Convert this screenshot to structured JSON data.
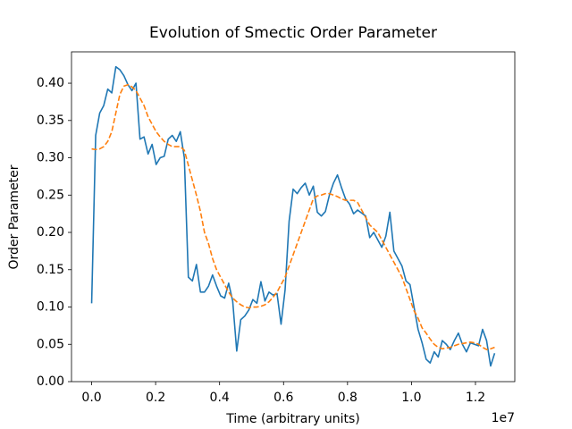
{
  "chart_data": {
    "type": "line",
    "title": "Evolution of Smectic Order Parameter",
    "xlabel": "Time (arbitrary units)",
    "ylabel": "Order Parameter",
    "x_offset_label": "1e7",
    "x": [
      0,
      126000,
      252000,
      378000,
      504000,
      630000,
      756000,
      882000,
      1008000,
      1134000,
      1260000,
      1386000,
      1512000,
      1638000,
      1764000,
      1890000,
      2016000,
      2142000,
      2268000,
      2394000,
      2520000,
      2646000,
      2772000,
      2898000,
      3024000,
      3150000,
      3276000,
      3402000,
      3528000,
      3654000,
      3780000,
      3906000,
      4032000,
      4158000,
      4284000,
      4410000,
      4536000,
      4662000,
      4788000,
      4914000,
      5040000,
      5166000,
      5292000,
      5418000,
      5544000,
      5670000,
      5796000,
      5922000,
      6048000,
      6174000,
      6300000,
      6426000,
      6552000,
      6678000,
      6804000,
      6930000,
      7056000,
      7182000,
      7308000,
      7434000,
      7560000,
      7686000,
      7812000,
      7938000,
      8064000,
      8190000,
      8316000,
      8442000,
      8568000,
      8694000,
      8820000,
      8946000,
      9072000,
      9198000,
      9324000,
      9450000,
      9576000,
      9702000,
      9828000,
      9954000,
      10080000,
      10206000,
      10332000,
      10458000,
      10584000,
      10710000,
      10836000,
      10962000,
      11088000,
      11214000,
      11340000,
      11466000,
      11592000,
      11718000,
      11844000,
      11970000,
      12096000,
      12222000,
      12348000,
      12474000,
      12600000
    ],
    "series": [
      {
        "color": "#1f77b4",
        "linestyle": "solid",
        "values": [
          0.105,
          0.33,
          0.36,
          0.37,
          0.392,
          0.387,
          0.422,
          0.418,
          0.41,
          0.398,
          0.39,
          0.4,
          0.325,
          0.328,
          0.305,
          0.318,
          0.291,
          0.3,
          0.302,
          0.325,
          0.33,
          0.322,
          0.335,
          0.3,
          0.14,
          0.135,
          0.157,
          0.12,
          0.12,
          0.128,
          0.143,
          0.128,
          0.115,
          0.112,
          0.132,
          0.108,
          0.041,
          0.083,
          0.088,
          0.096,
          0.11,
          0.105,
          0.134,
          0.108,
          0.12,
          0.116,
          0.118,
          0.077,
          0.123,
          0.215,
          0.258,
          0.252,
          0.26,
          0.266,
          0.25,
          0.262,
          0.227,
          0.222,
          0.228,
          0.25,
          0.266,
          0.277,
          0.26,
          0.245,
          0.238,
          0.225,
          0.23,
          0.226,
          0.222,
          0.193,
          0.2,
          0.19,
          0.18,
          0.195,
          0.227,
          0.175,
          0.165,
          0.155,
          0.135,
          0.13,
          0.1,
          0.07,
          0.052,
          0.03,
          0.025,
          0.04,
          0.033,
          0.055,
          0.05,
          0.043,
          0.055,
          0.065,
          0.05,
          0.04,
          0.052,
          0.05,
          0.048,
          0.07,
          0.055,
          0.021,
          0.038
        ]
      },
      {
        "color": "#ff7f0e",
        "linestyle": "dashed",
        "values": [
          0.312,
          0.311,
          0.312,
          0.315,
          0.322,
          0.335,
          0.36,
          0.385,
          0.396,
          0.398,
          0.395,
          0.39,
          0.38,
          0.37,
          0.355,
          0.345,
          0.335,
          0.328,
          0.322,
          0.318,
          0.315,
          0.315,
          0.315,
          0.31,
          0.29,
          0.27,
          0.25,
          0.228,
          0.2,
          0.185,
          0.165,
          0.15,
          0.14,
          0.13,
          0.12,
          0.112,
          0.107,
          0.103,
          0.1,
          0.099,
          0.1,
          0.1,
          0.101,
          0.103,
          0.107,
          0.113,
          0.12,
          0.13,
          0.14,
          0.155,
          0.17,
          0.185,
          0.2,
          0.215,
          0.23,
          0.245,
          0.249,
          0.25,
          0.252,
          0.252,
          0.25,
          0.248,
          0.245,
          0.243,
          0.243,
          0.243,
          0.24,
          0.23,
          0.22,
          0.21,
          0.205,
          0.2,
          0.19,
          0.18,
          0.17,
          0.16,
          0.15,
          0.14,
          0.125,
          0.11,
          0.095,
          0.085,
          0.072,
          0.065,
          0.057,
          0.05,
          0.046,
          0.044,
          0.045,
          0.046,
          0.048,
          0.05,
          0.051,
          0.052,
          0.053,
          0.052,
          0.05,
          0.046,
          0.043,
          0.044,
          0.046
        ]
      }
    ],
    "xlim": [
      -630000,
      13230000
    ],
    "ylim": [
      0,
      0.442
    ],
    "xticks": [
      {
        "value": 0,
        "label": "0.0"
      },
      {
        "value": 2000000,
        "label": "0.2"
      },
      {
        "value": 4000000,
        "label": "0.4"
      },
      {
        "value": 6000000,
        "label": "0.6"
      },
      {
        "value": 8000000,
        "label": "0.8"
      },
      {
        "value": 10000000,
        "label": "1.0"
      },
      {
        "value": 12000000,
        "label": "1.2"
      }
    ],
    "yticks": [
      {
        "value": 0,
        "label": "0.00"
      },
      {
        "value": 0.05,
        "label": "0.05"
      },
      {
        "value": 0.1,
        "label": "0.10"
      },
      {
        "value": 0.15,
        "label": "0.15"
      },
      {
        "value": 0.2,
        "label": "0.20"
      },
      {
        "value": 0.25,
        "label": "0.25"
      },
      {
        "value": 0.3,
        "label": "0.30"
      },
      {
        "value": 0.35,
        "label": "0.35"
      },
      {
        "value": 0.4,
        "label": "0.40"
      }
    ]
  }
}
